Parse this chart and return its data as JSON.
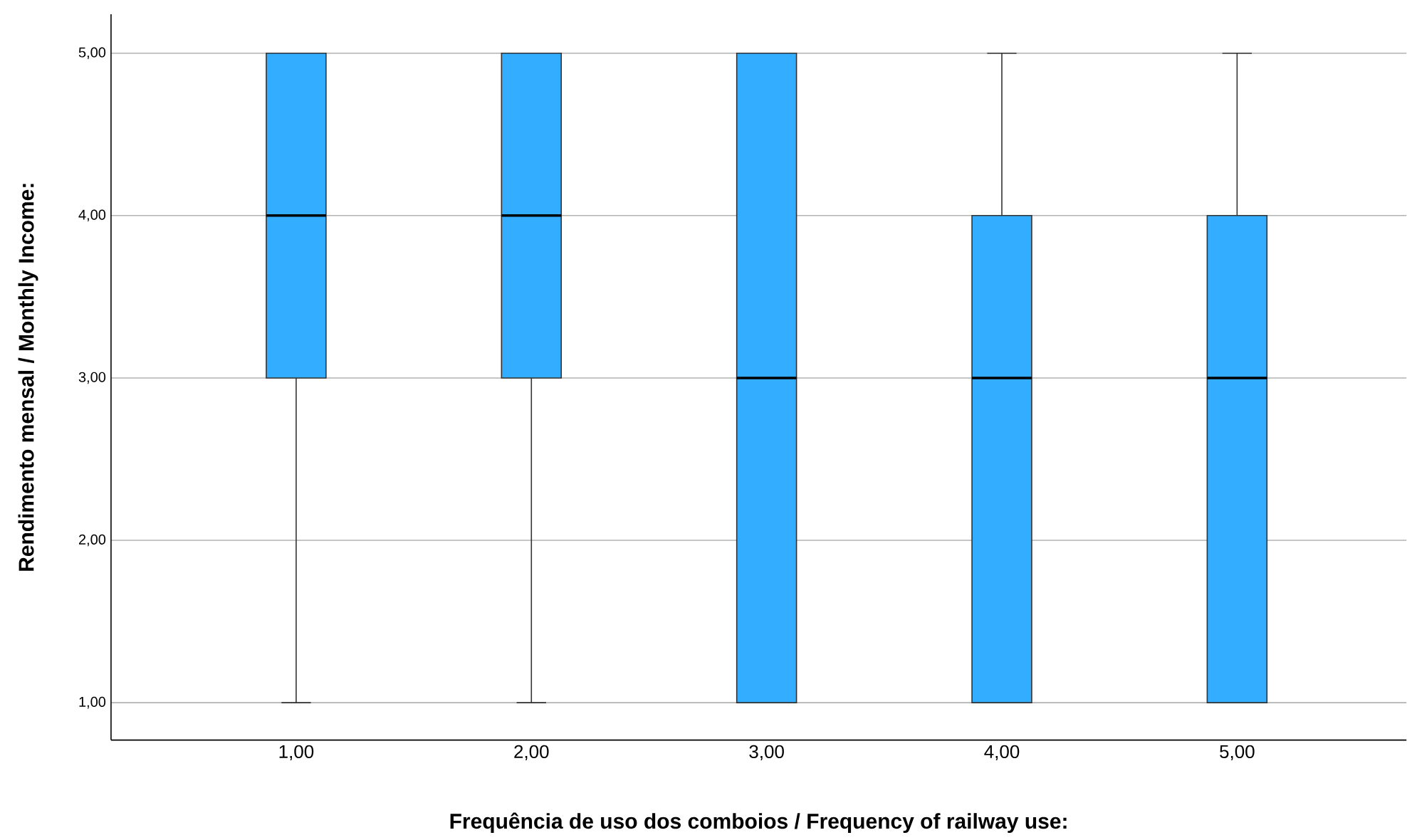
{
  "chart_data": {
    "type": "box",
    "xlabel": "Frequência de uso dos comboios / Frequency of railway use:",
    "ylabel": "Rendimento mensal / Monthly Income:",
    "categories": [
      "1,00",
      "2,00",
      "3,00",
      "4,00",
      "5,00"
    ],
    "boxes": [
      {
        "low": 1,
        "q1": 3,
        "median": 4,
        "q3": 5,
        "high": 5
      },
      {
        "low": 1,
        "q1": 3,
        "median": 4,
        "q3": 5,
        "high": 5
      },
      {
        "low": 1,
        "q1": 1,
        "median": 3,
        "q3": 5,
        "high": 5
      },
      {
        "low": 1,
        "q1": 1,
        "median": 3,
        "q3": 4,
        "high": 5
      },
      {
        "low": 1,
        "q1": 1,
        "median": 3,
        "q3": 4,
        "high": 5
      }
    ],
    "color": "#33adff",
    "ylim": [
      0.77,
      5.24
    ],
    "yticks": [
      {
        "value": 1,
        "label": "1,00"
      },
      {
        "value": 2,
        "label": "2,00"
      },
      {
        "value": 3,
        "label": "3,00"
      },
      {
        "value": 4,
        "label": "4,00"
      },
      {
        "value": 5,
        "label": "5,00"
      }
    ],
    "grid": "y"
  }
}
